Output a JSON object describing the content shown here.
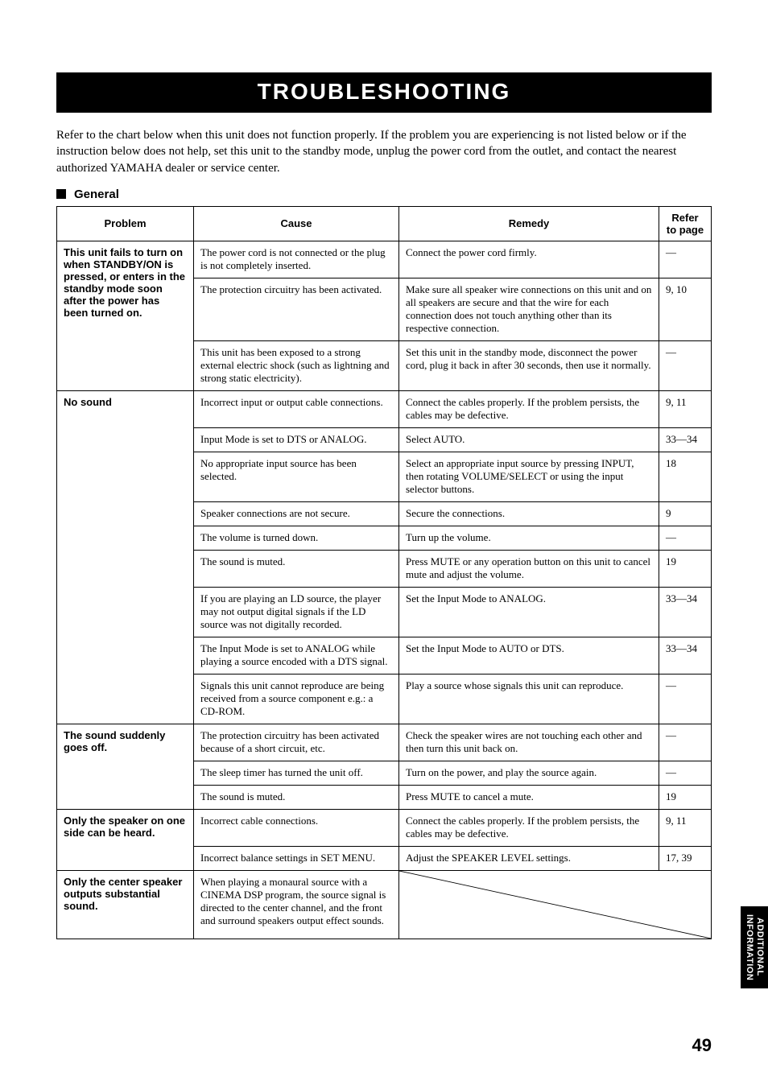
{
  "title": "TROUBLESHOOTING",
  "intro": "Refer to the chart below when this unit does not function properly. If the problem you are experiencing is not listed below or if the instruction below does not help, set this unit to the standby mode, unplug the power cord from the outlet, and contact the nearest authorized YAMAHA dealer or service center.",
  "section": "General",
  "headers": {
    "problem": "Problem",
    "cause": "Cause",
    "remedy": "Remedy",
    "ref": "Refer to page"
  },
  "rows": [
    {
      "problem": "This unit fails to turn on when STANDBY/ON is pressed, or enters in the standby mode soon after the power has been turned on.",
      "problem_rowspan": 3,
      "cause": "The power cord is not connected or the plug is not completely inserted.",
      "remedy": "Connect the power cord firmly.",
      "ref": "—"
    },
    {
      "cause": "The protection circuitry has been activated.",
      "remedy": "Make sure all speaker wire connections on this unit and on all speakers are secure and that the wire for each connection does not touch anything other than its respective connection.",
      "ref": "9, 10"
    },
    {
      "cause": "This unit has been exposed to a strong external electric shock (such as lightning and strong static electricity).",
      "remedy": "Set this unit in the standby mode, disconnect the power cord, plug it back in after 30 seconds, then use it normally.",
      "ref": "—"
    },
    {
      "problem": "No sound",
      "problem_rowspan": 9,
      "cause": "Incorrect input or output cable connections.",
      "remedy": "Connect the cables properly. If the problem persists, the cables may be defective.",
      "ref": "9, 11"
    },
    {
      "cause": "Input Mode is set to DTS or ANALOG.",
      "remedy": "Select AUTO.",
      "ref": "33—34"
    },
    {
      "cause": "No appropriate input source has been selected.",
      "remedy": "Select an appropriate input source by pressing INPUT, then rotating VOLUME/SELECT or using the input selector buttons.",
      "ref": "18"
    },
    {
      "cause": "Speaker connections are not secure.",
      "remedy": "Secure the connections.",
      "ref": "9"
    },
    {
      "cause": "The volume is turned down.",
      "remedy": "Turn up the volume.",
      "ref": "—"
    },
    {
      "cause": "The sound is muted.",
      "remedy": "Press MUTE or any operation button on this unit to cancel mute and adjust the volume.",
      "ref": "19"
    },
    {
      "cause": "If you are playing an LD source, the player may not output digital signals if the LD source was not digitally recorded.",
      "remedy": "Set the Input Mode to ANALOG.",
      "ref": "33—34"
    },
    {
      "cause": "The Input Mode is set to ANALOG while playing a source encoded with a DTS signal.",
      "remedy": "Set the Input Mode to AUTO or DTS.",
      "ref": "33—34"
    },
    {
      "cause": "Signals this unit cannot reproduce are being received from a source component e.g.: a CD-ROM.",
      "remedy": "Play a source whose signals this unit can reproduce.",
      "ref": "—"
    },
    {
      "problem": "The sound suddenly goes off.",
      "problem_rowspan": 3,
      "cause": "The protection circuitry has been activated because of a short circuit, etc.",
      "remedy": "Check the speaker wires are not touching each other and then turn this unit back on.",
      "ref": "—"
    },
    {
      "cause": "The sleep timer has turned the unit off.",
      "remedy": "Turn on the power, and play the source again.",
      "ref": "—"
    },
    {
      "cause": "The sound is muted.",
      "remedy": "Press MUTE to cancel a mute.",
      "ref": "19"
    },
    {
      "problem": "Only the speaker on one side can be heard.",
      "problem_rowspan": 2,
      "cause": "Incorrect cable connections.",
      "remedy": "Connect the cables properly. If the problem persists, the cables may be defective.",
      "ref": "9, 11"
    },
    {
      "cause": "Incorrect balance settings in SET MENU.",
      "remedy": "Adjust the SPEAKER LEVEL settings.",
      "ref": "17, 39"
    },
    {
      "problem": "Only the center speaker outputs substantial sound.",
      "problem_rowspan": 1,
      "cause": "When playing a monaural source with a CINEMA DSP program, the source signal is directed to the center channel, and the front and surround speakers output effect sounds.",
      "remedy_svg": true,
      "ref": ""
    }
  ],
  "side_tab_l1": "ADDITIONAL",
  "side_tab_l2": "INFORMATION",
  "page_number": "49"
}
